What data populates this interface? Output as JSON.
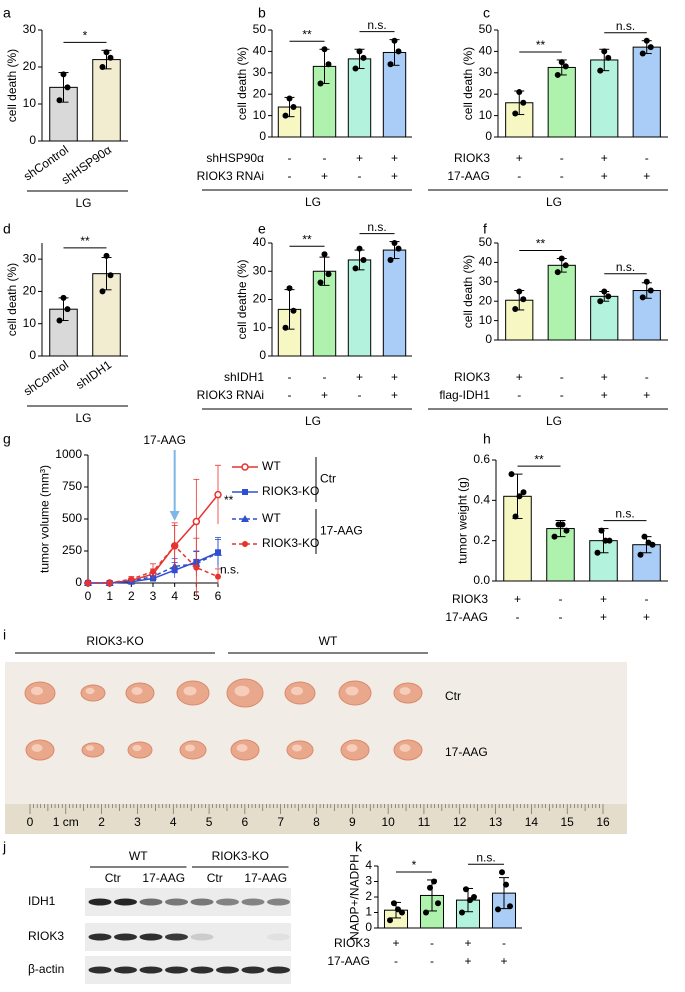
{
  "chart_data": [
    {
      "type": "bar",
      "panel": "a",
      "ylabel": "cell death (%)",
      "categories": [
        "shControl",
        "shHSP90α"
      ],
      "values": [
        14.5,
        22
      ],
      "errors": [
        4,
        2.5
      ],
      "points": [
        [
          11,
          18,
          14.5
        ],
        [
          20,
          24,
          22.5
        ]
      ],
      "colors": [
        "#d9d9d9",
        "#f2ecd0"
      ],
      "ylim": [
        0,
        30
      ],
      "yticks": [
        0,
        10,
        20,
        30
      ],
      "significance": [
        "*"
      ],
      "group_label": "LG"
    },
    {
      "type": "bar",
      "panel": "b",
      "ylabel": "cell death (%)",
      "values": [
        14,
        33,
        36.5,
        39.5
      ],
      "errors": [
        4.5,
        8,
        4.5,
        6
      ],
      "points": [
        [
          10,
          18,
          14
        ],
        [
          25,
          41,
          34
        ],
        [
          32,
          40,
          37
        ],
        [
          34,
          45,
          40
        ]
      ],
      "colors": [
        "#f7f7c4",
        "#aef2ae",
        "#b3f2dc",
        "#a9cdf7"
      ],
      "ylim": [
        0,
        50
      ],
      "yticks": [
        0,
        10,
        20,
        30,
        40,
        50
      ],
      "rows": [
        {
          "label": "shHSP90α",
          "values": [
            "-",
            "-",
            "+",
            "+"
          ]
        },
        {
          "label": "RIOK3 RNAi",
          "values": [
            "-",
            "+",
            "-",
            "+"
          ]
        }
      ],
      "significance": [
        "**",
        "n.s."
      ],
      "group_label": "LG"
    },
    {
      "type": "bar",
      "panel": "c",
      "ylabel": "cell death (%)",
      "values": [
        16,
        32.5,
        36,
        42
      ],
      "errors": [
        5.5,
        3.5,
        5,
        3
      ],
      "points": [
        [
          11,
          21,
          16
        ],
        [
          29,
          35,
          33
        ],
        [
          31,
          40,
          37
        ],
        [
          39,
          45,
          42
        ]
      ],
      "colors": [
        "#f7f7c4",
        "#aef2ae",
        "#b3f2dc",
        "#a9cdf7"
      ],
      "ylim": [
        0,
        50
      ],
      "yticks": [
        0,
        10,
        20,
        30,
        40,
        50
      ],
      "rows": [
        {
          "label": "RIOK3",
          "values": [
            "+",
            "-",
            "+",
            "-"
          ]
        },
        {
          "label": "17-AAG",
          "values": [
            "-",
            "-",
            "+",
            "+"
          ]
        }
      ],
      "significance": [
        "**",
        "n.s."
      ],
      "group_label": "LG"
    },
    {
      "type": "bar",
      "panel": "d",
      "ylabel": "cell death (%)",
      "categories": [
        "shControl",
        "shIDH1"
      ],
      "values": [
        14.5,
        25.5
      ],
      "errors": [
        3.5,
        5
      ],
      "points": [
        [
          11,
          18,
          14.5
        ],
        [
          20,
          31,
          25
        ]
      ],
      "colors": [
        "#d9d9d9",
        "#f2ecd0"
      ],
      "ylim": [
        0,
        35
      ],
      "yticks": [
        0,
        10,
        20,
        30
      ],
      "significance": [
        "**"
      ],
      "group_label": "LG"
    },
    {
      "type": "bar",
      "panel": "e",
      "ylabel": "cell deathe (%)",
      "values": [
        16.5,
        30,
        34,
        37.5
      ],
      "errors": [
        7,
        5,
        3.5,
        3
      ],
      "points": [
        [
          10,
          24,
          16
        ],
        [
          26,
          36,
          29
        ],
        [
          31,
          38,
          34
        ],
        [
          34,
          40,
          38
        ]
      ],
      "colors": [
        "#f7f7c4",
        "#aef2ae",
        "#b3f2dc",
        "#a9cdf7"
      ],
      "ylim": [
        0,
        40
      ],
      "yticks": [
        0,
        10,
        20,
        30,
        40
      ],
      "rows": [
        {
          "label": "shIDH1",
          "values": [
            "-",
            "-",
            "+",
            "+"
          ]
        },
        {
          "label": "RIOK3 RNAi",
          "values": [
            "-",
            "+",
            "-",
            "+"
          ]
        }
      ],
      "significance": [
        "**",
        "n.s."
      ],
      "group_label": "LG"
    },
    {
      "type": "bar",
      "panel": "f",
      "ylabel": "cell death (%)",
      "values": [
        20.5,
        38.5,
        22.5,
        25.5
      ],
      "errors": [
        5,
        3.5,
        2.5,
        4
      ],
      "points": [
        [
          16,
          25,
          21
        ],
        [
          35,
          42,
          38.5
        ],
        [
          20,
          25,
          22.5
        ],
        [
          22,
          30,
          25.5
        ]
      ],
      "colors": [
        "#f7f7c4",
        "#aef2ae",
        "#b3f2dc",
        "#a9cdf7"
      ],
      "ylim": [
        0,
        50
      ],
      "yticks": [
        0,
        10,
        20,
        30,
        40,
        50
      ],
      "rows": [
        {
          "label": "RIOK3",
          "values": [
            "+",
            "-",
            "+",
            "-"
          ]
        },
        {
          "label": "flag-IDH1",
          "values": [
            "-",
            "-",
            "+",
            "+"
          ]
        }
      ],
      "significance": [
        "**",
        "n.s."
      ],
      "group_label": "LG"
    },
    {
      "type": "line",
      "panel": "g",
      "ylabel": "tumor volume (mm³)",
      "x": [
        0,
        1,
        2,
        3,
        4,
        5,
        6
      ],
      "xlim": [
        0,
        6
      ],
      "xticks": [
        0,
        1,
        2,
        3,
        4,
        5,
        6
      ],
      "ylim": [
        0,
        1000
      ],
      "yticks": [
        0,
        250,
        500,
        750,
        1000
      ],
      "series": [
        {
          "name": "WT",
          "color": "#e8322d",
          "style": "solid",
          "marker": "open-circle",
          "values": [
            0,
            0,
            20,
            70,
            290,
            480,
            690
          ],
          "errors": [
            0,
            0,
            15,
            40,
            160,
            330,
            230
          ]
        },
        {
          "name": "RIOK3-KO",
          "color": "#2f4fd0",
          "style": "solid",
          "marker": "square",
          "values": [
            0,
            0,
            10,
            35,
            100,
            165,
            240
          ],
          "errors": [
            0,
            0,
            8,
            20,
            60,
            80,
            100
          ]
        },
        {
          "name": "WT",
          "color": "#2f4fd0",
          "style": "dashed",
          "marker": "triangle",
          "values": [
            0,
            0,
            15,
            50,
            130,
            150,
            235
          ],
          "errors": [
            0,
            0,
            10,
            30,
            60,
            100,
            120
          ]
        },
        {
          "name": "RIOK3-KO",
          "color": "#e8322d",
          "style": "dashed",
          "marker": "circle",
          "values": [
            0,
            0,
            30,
            90,
            290,
            120,
            50
          ],
          "errors": [
            0,
            0,
            20,
            60,
            180,
            230,
            60
          ]
        }
      ],
      "legend_groups": [
        "Ctr",
        "17-AAG"
      ],
      "arrow_x": 4,
      "annotations": [
        "17-AAG",
        "**",
        "n.s."
      ]
    },
    {
      "type": "bar",
      "panel": "h",
      "ylabel": "tumor weight (g)",
      "values": [
        0.42,
        0.26,
        0.2,
        0.18
      ],
      "errors": [
        0.11,
        0.04,
        0.06,
        0.04
      ],
      "points": [
        [
          0.53,
          0.32,
          0.42,
          0.44
        ],
        [
          0.22,
          0.28,
          0.28,
          0.25
        ],
        [
          0.14,
          0.25,
          0.2,
          0.2
        ],
        [
          0.13,
          0.22,
          0.19,
          0.18
        ]
      ],
      "colors": [
        "#f7f7c4",
        "#aef2ae",
        "#b3f2dc",
        "#a9cdf7"
      ],
      "ylim": [
        0,
        0.6
      ],
      "yticks": [
        {
          "value": 0,
          "label": "0.0"
        },
        0.2,
        0.4,
        0.6
      ],
      "rows": [
        {
          "label": "RIOK3",
          "values": [
            "+",
            "-",
            "+",
            "-"
          ]
        },
        {
          "label": "17-AAG",
          "values": [
            "-",
            "-",
            "+",
            "+"
          ]
        }
      ],
      "significance": [
        "**",
        "n.s."
      ]
    },
    {
      "type": "bar",
      "panel": "k",
      "ylabel": "NADP+/NADPH",
      "values": [
        1.15,
        2.1,
        1.8,
        2.25
      ],
      "errors": [
        0.5,
        1.0,
        0.75,
        1.0
      ],
      "points": [
        [
          0.5,
          1.6,
          1.2,
          1.0
        ],
        [
          1.0,
          2.6,
          3.0,
          1.6
        ],
        [
          1.0,
          2.5,
          1.8,
          2.0
        ],
        [
          1.2,
          3.6,
          2.8,
          1.4
        ]
      ],
      "colors": [
        "#f7f7c4",
        "#aef2ae",
        "#b3f2dc",
        "#a9cdf7"
      ],
      "ylim": [
        0,
        4
      ],
      "yticks": [
        0,
        1,
        2,
        3,
        4
      ],
      "rows": [
        {
          "label": "RIOK3",
          "values": [
            "+",
            "-",
            "+",
            "-"
          ]
        },
        {
          "label": "17-AAG",
          "values": [
            "-",
            "-",
            "+",
            "+"
          ]
        }
      ],
      "significance": [
        "*",
        "n.s."
      ]
    }
  ],
  "photo": {
    "panel": "i",
    "genotypes": [
      "RIOK3-KO",
      "WT"
    ],
    "treatments": [
      "Ctr",
      "17-AAG"
    ],
    "ruler_labels": [
      "0",
      "1 cm",
      "2",
      "3",
      "4",
      "5",
      "6",
      "7",
      "8",
      "9",
      "10",
      "11",
      "12",
      "13",
      "14",
      "15",
      "16"
    ]
  },
  "blot": {
    "panel": "j",
    "groups": [
      "WT",
      "RIOK3-KO"
    ],
    "lanes": [
      "Ctr",
      "17-AAG",
      "Ctr",
      "17-AAG"
    ],
    "proteins": [
      "IDH1",
      "RIOK3",
      "β-actin"
    ]
  }
}
